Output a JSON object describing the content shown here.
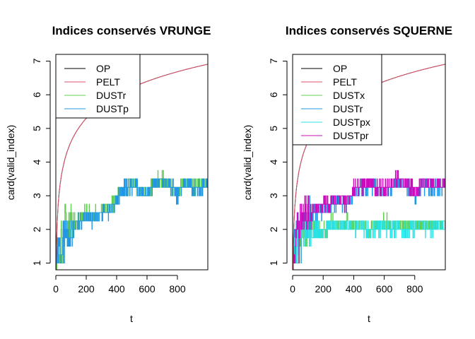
{
  "chart_data": [
    {
      "type": "line",
      "title": "Indices conservés VRUNGE",
      "xlabel": "t",
      "ylabel": "card(valid_index)",
      "xlim": [
        0,
        1000
      ],
      "ylim": [
        0.8,
        7.2
      ],
      "xticks": [
        0,
        200,
        400,
        600,
        800
      ],
      "yticks": [
        1,
        2,
        3,
        4,
        5,
        6,
        7
      ],
      "legend_position": "top-left",
      "series": [
        {
          "name": "OP",
          "color": "#000000",
          "model": "log",
          "x": [
            1,
            5,
            10,
            20,
            50,
            100,
            200,
            300,
            400,
            500,
            600,
            700,
            800,
            900,
            1000
          ],
          "values": [
            0,
            1.61,
            2.3,
            3.0,
            3.91,
            4.61,
            5.3,
            5.7,
            5.99,
            6.21,
            6.4,
            6.55,
            6.68,
            6.8,
            6.91
          ]
        },
        {
          "name": "PELT",
          "color": "#DF536B",
          "model": "log",
          "x": [
            1,
            5,
            10,
            20,
            50,
            100,
            200,
            300,
            400,
            500,
            600,
            700,
            800,
            900,
            1000
          ],
          "values": [
            0,
            1.61,
            2.3,
            3.0,
            3.91,
            4.61,
            5.3,
            5.7,
            5.99,
            6.21,
            6.4,
            6.55,
            6.68,
            6.8,
            6.91
          ]
        },
        {
          "name": "DUSTr",
          "color": "#61D04F",
          "model": "noisy",
          "x": [
            0,
            20,
            40,
            60,
            80,
            100,
            150,
            200,
            250,
            300,
            350,
            400,
            450,
            500,
            550,
            600,
            650,
            700,
            750,
            800,
            850,
            900,
            950,
            1000
          ],
          "values": [
            1.0,
            1.5,
            1.8,
            2.3,
            2.0,
            2.1,
            2.3,
            2.5,
            2.4,
            2.6,
            2.6,
            3.0,
            3.2,
            3.3,
            3.2,
            3.1,
            3.4,
            3.5,
            3.3,
            3.1,
            3.4,
            3.3,
            3.3,
            3.4
          ]
        },
        {
          "name": "DUSTp",
          "color": "#2297E6",
          "model": "noisy",
          "x": [
            0,
            20,
            40,
            60,
            80,
            100,
            150,
            200,
            250,
            300,
            350,
            400,
            450,
            500,
            550,
            600,
            650,
            700,
            750,
            800,
            850,
            900,
            950,
            1000
          ],
          "values": [
            1.0,
            1.4,
            1.6,
            2.1,
            1.8,
            2.0,
            2.2,
            2.4,
            2.3,
            2.5,
            2.5,
            2.9,
            3.2,
            3.3,
            3.2,
            3.0,
            3.4,
            3.4,
            3.3,
            3.0,
            3.4,
            3.2,
            3.2,
            3.4
          ]
        }
      ]
    },
    {
      "type": "line",
      "title": "Indices conservés SQUERNE",
      "xlabel": "t",
      "ylabel": "card(valid_index)",
      "xlim": [
        0,
        1000
      ],
      "ylim": [
        0.8,
        7.2
      ],
      "xticks": [
        0,
        200,
        400,
        600,
        800
      ],
      "yticks": [
        1,
        2,
        3,
        4,
        5,
        6,
        7
      ],
      "legend_position": "top-left",
      "series": [
        {
          "name": "OP",
          "color": "#000000",
          "model": "log",
          "x": [
            1,
            5,
            10,
            20,
            50,
            100,
            200,
            300,
            400,
            500,
            600,
            700,
            800,
            900,
            1000
          ],
          "values": [
            0,
            1.61,
            2.3,
            3.0,
            3.91,
            4.61,
            5.3,
            5.7,
            5.99,
            6.21,
            6.4,
            6.55,
            6.68,
            6.8,
            6.91
          ]
        },
        {
          "name": "PELT",
          "color": "#DF536B",
          "model": "log",
          "x": [
            1,
            5,
            10,
            20,
            50,
            100,
            200,
            300,
            400,
            500,
            600,
            700,
            800,
            900,
            1000
          ],
          "values": [
            0,
            1.61,
            2.3,
            3.0,
            3.91,
            4.61,
            5.3,
            5.7,
            5.99,
            6.21,
            6.4,
            6.55,
            6.68,
            6.8,
            6.91
          ]
        },
        {
          "name": "DUSTx",
          "color": "#61D04F",
          "model": "noisy",
          "x": [
            0,
            20,
            40,
            60,
            80,
            100,
            150,
            200,
            250,
            300,
            350,
            400,
            450,
            500,
            550,
            600,
            650,
            700,
            750,
            800,
            850,
            900,
            950,
            1000
          ],
          "values": [
            1.0,
            1.6,
            1.9,
            2.1,
            2.0,
            2.0,
            2.1,
            2.0,
            2.2,
            2.1,
            2.2,
            2.1,
            2.2,
            2.0,
            2.1,
            2.2,
            2.1,
            2.2,
            2.0,
            2.1,
            2.2,
            2.1,
            2.2,
            2.2
          ]
        },
        {
          "name": "DUSTr",
          "color": "#2297E6",
          "model": "noisy",
          "x": [
            0,
            20,
            40,
            60,
            80,
            100,
            150,
            200,
            250,
            300,
            350,
            400,
            450,
            500,
            550,
            600,
            650,
            700,
            750,
            800,
            850,
            900,
            950,
            1000
          ],
          "values": [
            1.0,
            1.8,
            2.1,
            2.4,
            2.3,
            2.4,
            2.5,
            2.6,
            2.7,
            2.8,
            2.7,
            3.1,
            3.2,
            3.3,
            3.2,
            3.1,
            3.3,
            3.4,
            3.3,
            3.0,
            3.3,
            3.2,
            3.2,
            3.3
          ]
        },
        {
          "name": "DUSTpx",
          "color": "#28E2E5",
          "model": "noisy",
          "x": [
            0,
            20,
            40,
            60,
            80,
            100,
            150,
            200,
            250,
            300,
            350,
            400,
            450,
            500,
            550,
            600,
            650,
            700,
            750,
            800,
            850,
            900,
            950,
            1000
          ],
          "values": [
            1.0,
            1.5,
            1.8,
            2.0,
            1.9,
            1.9,
            2.0,
            1.9,
            2.1,
            2.0,
            2.1,
            2.0,
            2.1,
            1.9,
            2.0,
            2.1,
            2.0,
            2.1,
            1.9,
            2.0,
            2.1,
            2.0,
            2.1,
            2.1
          ]
        },
        {
          "name": "DUSTpr",
          "color": "#CD0BBC",
          "model": "noisy",
          "x": [
            0,
            20,
            40,
            60,
            80,
            100,
            150,
            200,
            250,
            300,
            350,
            400,
            450,
            500,
            550,
            600,
            650,
            700,
            750,
            800,
            850,
            900,
            950,
            1000
          ],
          "values": [
            1.0,
            1.9,
            2.2,
            2.5,
            2.4,
            2.5,
            2.6,
            2.7,
            2.8,
            2.9,
            2.8,
            3.2,
            3.3,
            3.4,
            3.3,
            3.2,
            3.4,
            3.5,
            3.4,
            3.1,
            3.4,
            3.3,
            3.3,
            3.4
          ]
        }
      ]
    }
  ]
}
